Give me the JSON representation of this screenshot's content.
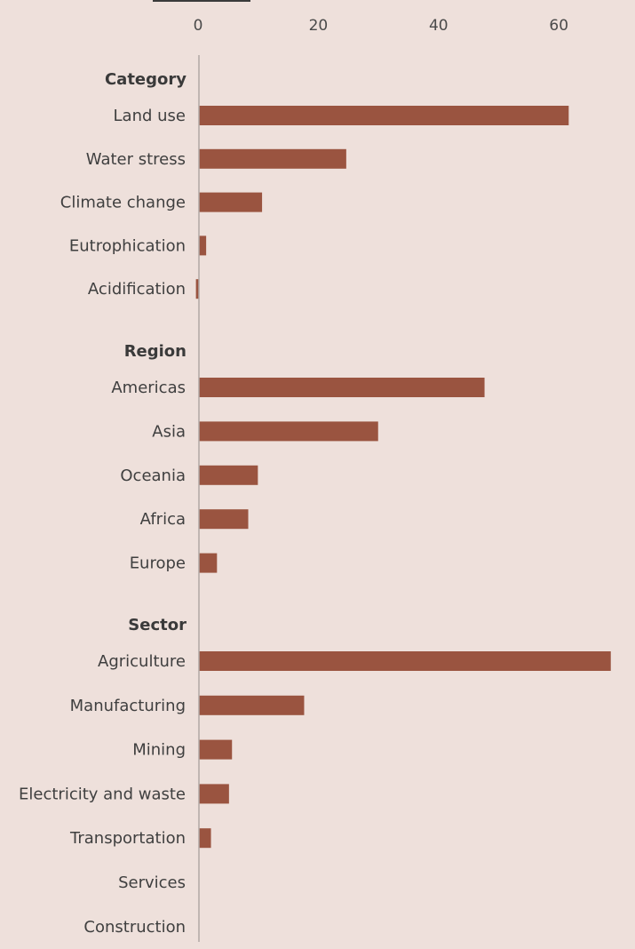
{
  "chart_data": {
    "type": "bar",
    "orientation": "horizontal",
    "bar_color": "#9a5440",
    "background": "#eee0db",
    "axis_color": "#b0a8a5",
    "xlim": [
      0,
      72
    ],
    "xticks": [
      "0",
      "20",
      "40",
      "60"
    ],
    "groups": [
      {
        "label": "Category",
        "categories": [
          "Land use",
          "Water stress",
          "Climate change",
          "Eutrophication",
          "Acidification"
        ],
        "values": [
          61.5,
          24.5,
          10.5,
          1.2,
          -0.5
        ]
      },
      {
        "label": "Region",
        "categories": [
          "Americas",
          "Asia",
          "Oceania",
          "Africa",
          "Europe"
        ],
        "values": [
          47.5,
          29.8,
          9.8,
          8.2,
          3.0
        ]
      },
      {
        "label": "Sector",
        "categories": [
          "Agriculture",
          "Manufacturing",
          "Mining",
          "Electricity and waste",
          "Transportation",
          "Services",
          "Construction"
        ],
        "values": [
          68.5,
          17.5,
          5.5,
          5.0,
          2.0,
          0,
          0
        ]
      }
    ]
  }
}
